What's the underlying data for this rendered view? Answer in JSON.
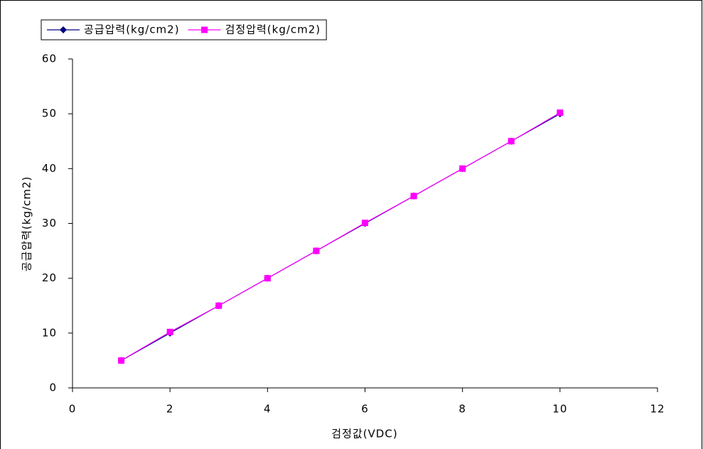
{
  "chart_data": {
    "type": "line",
    "x_label": "검정값(VDC)",
    "y_label": "공급압력(kg/cm2)",
    "x": [
      1,
      2,
      3,
      4,
      5,
      6,
      7,
      8,
      9,
      10
    ],
    "series": [
      {
        "name": "공급압력(kg/cm2)",
        "color": "#000080",
        "marker": "diamond",
        "values": [
          5,
          10,
          15,
          20,
          25,
          30,
          35,
          40,
          45,
          50
        ]
      },
      {
        "name": "검정압력(kg/cm2)",
        "color": "#ff00ff",
        "marker": "square",
        "values": [
          5,
          10.2,
          15,
          20,
          25,
          30.1,
          35,
          40,
          45,
          50.2
        ]
      }
    ],
    "xlim": [
      0,
      12
    ],
    "xticks": [
      0,
      2,
      4,
      6,
      8,
      10,
      12
    ],
    "ylim": [
      0,
      60
    ],
    "yticks": [
      0,
      10,
      20,
      30,
      40,
      50,
      60
    ],
    "grid": false,
    "legend": "top-left"
  }
}
